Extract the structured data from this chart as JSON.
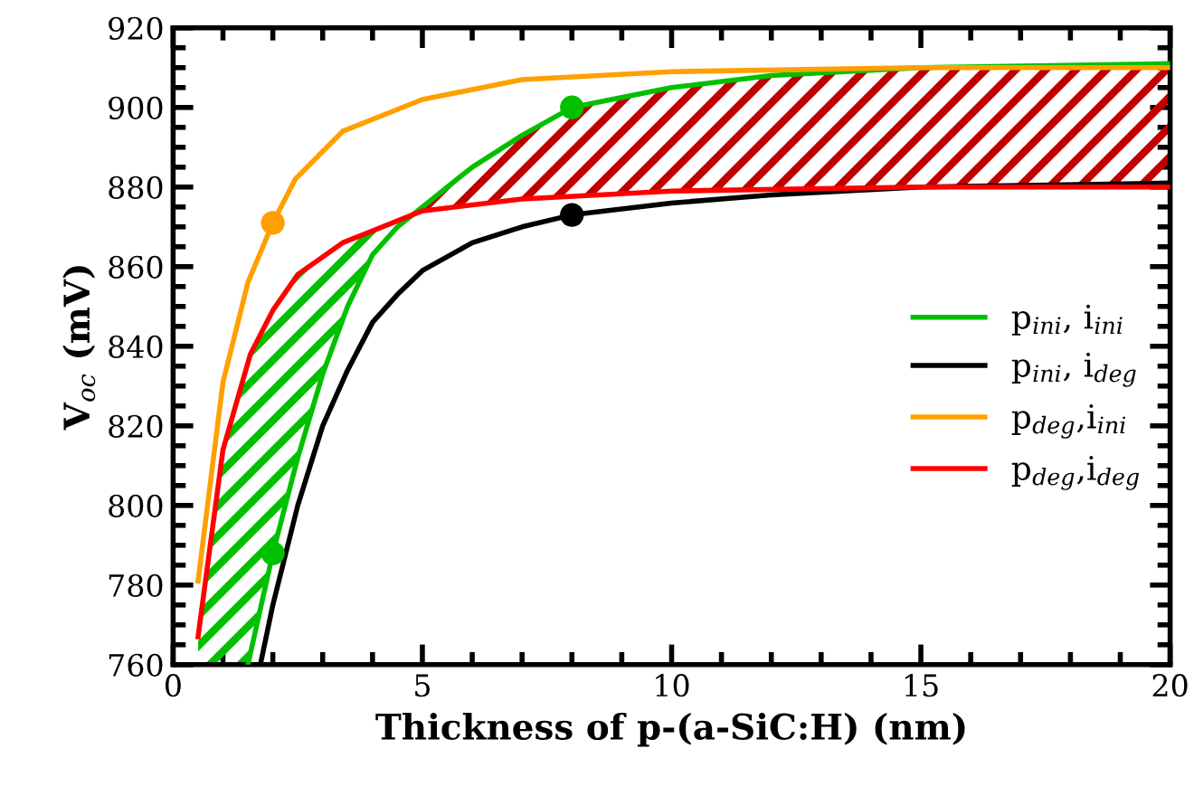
{
  "chart_data": {
    "type": "line",
    "xlabel": "Thickness of p-(a-SiC:H) (nm)",
    "ylabel": "V$_{oc}$ (mV)",
    "xlim": [
      0,
      20
    ],
    "xticks": [
      0,
      5,
      10,
      15,
      20
    ],
    "ylim": [
      760,
      920
    ],
    "yticks": [
      760,
      780,
      800,
      820,
      840,
      860,
      880,
      900,
      920
    ],
    "grid": false,
    "legend": "right",
    "marker": "none",
    "line_style": "solid",
    "series": [
      {
        "name": "p$_{ini}$, i$_{ini}$",
        "color": "#00c000",
        "x": [
          1.5,
          2,
          2.5,
          3,
          3.5,
          4,
          4.5,
          5,
          6,
          7,
          8,
          10,
          12,
          15,
          20
        ],
        "values": [
          760,
          788,
          812,
          833,
          850,
          863,
          870,
          875,
          885,
          893,
          900,
          905,
          908,
          910,
          911
        ]
      },
      {
        "name": "p$_{ini}$, i$_{deg}$",
        "color": "#000000",
        "x": [
          1.75,
          2,
          2.5,
          3,
          3.5,
          4,
          4.5,
          5,
          6,
          7,
          8,
          10,
          12,
          15,
          20
        ],
        "values": [
          760,
          775,
          800,
          820,
          834,
          846,
          853,
          859,
          866,
          870,
          873,
          876,
          878,
          880,
          881
        ]
      },
      {
        "name": "p$_{deg}$,i$_{ini}$",
        "color": "#ffa000",
        "x": [
          0.5,
          1,
          1.5,
          2,
          2.45,
          3.4,
          5,
          7,
          10,
          15,
          20
        ],
        "values": [
          781,
          831,
          856,
          871,
          882,
          894,
          902,
          907,
          909,
          910,
          910
        ]
      },
      {
        "name": "p$_{deg}$,i$_{deg}$",
        "color": "#ff0000",
        "x": [
          0.5,
          1,
          1.55,
          2,
          2.5,
          3.4,
          4.4,
          5,
          7,
          10,
          15,
          20
        ],
        "values": [
          767,
          814,
          838,
          849,
          858,
          866,
          871,
          874,
          877,
          879,
          880,
          880
        ]
      },
      {
        "type": "scatter",
        "marker": "circle",
        "color": "#00c000",
        "x": [
          2,
          8
        ],
        "values": [
          788,
          900
        ]
      },
      {
        "type": "scatter",
        "marker": "circle",
        "color": "#000000",
        "x": [
          8
        ],
        "values": [
          873
        ]
      },
      {
        "type": "scatter",
        "marker": "circle",
        "color": "#ffa000",
        "x": [
          2
        ],
        "values": [
          871
        ]
      }
    ]
  }
}
